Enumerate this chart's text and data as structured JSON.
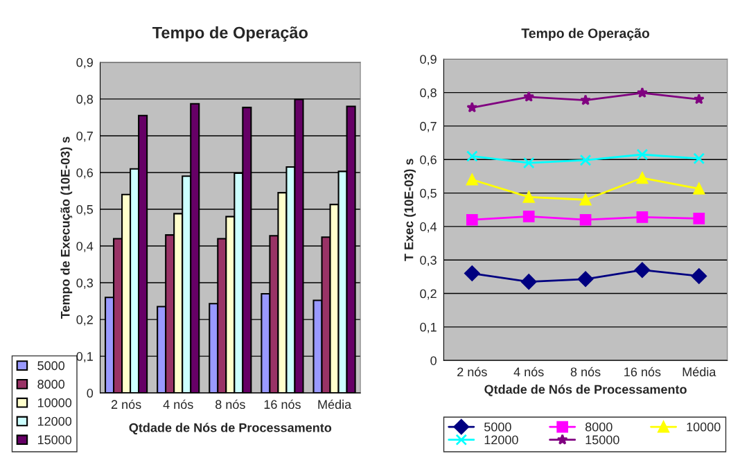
{
  "chart_data": [
    {
      "type": "bar",
      "title": "Tempo de Operação",
      "xlabel": "Qtdade de Nós de Processamento",
      "ylabel": "Tempo de Execução (10E-03) s",
      "categories": [
        "2 nós",
        "4 nós",
        "8 nós",
        "16 nós",
        "Média"
      ],
      "series": [
        {
          "name": "5000",
          "color": "#9999ff",
          "values": [
            0.26,
            0.235,
            0.243,
            0.27,
            0.252
          ]
        },
        {
          "name": "8000",
          "color": "#993366",
          "values": [
            0.42,
            0.43,
            0.42,
            0.428,
            0.424
          ]
        },
        {
          "name": "10000",
          "color": "#ffffcc",
          "values": [
            0.54,
            0.488,
            0.48,
            0.545,
            0.513
          ]
        },
        {
          "name": "12000",
          "color": "#ccffff",
          "values": [
            0.61,
            0.59,
            0.598,
            0.615,
            0.603
          ]
        },
        {
          "name": "15000",
          "color": "#660066",
          "values": [
            0.755,
            0.787,
            0.777,
            0.799,
            0.78
          ]
        }
      ],
      "ylim": [
        0,
        0.9
      ],
      "yticks": [
        0,
        {
          "value": 0.1,
          "label": "0,1"
        },
        {
          "value": 0.2,
          "label": "0,2"
        },
        {
          "value": 0.3,
          "label": "0,3"
        },
        {
          "value": 0.4,
          "label": "0,4"
        },
        {
          "value": 0.5,
          "label": "0,5"
        },
        {
          "value": 0.6,
          "label": "0,6"
        },
        {
          "value": 0.7,
          "label": "0,7"
        },
        {
          "value": 0.8,
          "label": "0,8"
        },
        {
          "value": 0.9,
          "label": "0,9"
        }
      ],
      "grid": "y",
      "legend": "bottom left"
    },
    {
      "type": "line",
      "title": "Tempo de Operação",
      "xlabel": "Qtdade de Nós de Processamento",
      "ylabel": "T Exec (10E-03) s",
      "categories": [
        "2 nós",
        "4 nós",
        "8 nós",
        "16 nós",
        "Média"
      ],
      "series": [
        {
          "name": "5000",
          "color": "#000080",
          "marker": "diamond",
          "values": [
            0.26,
            0.235,
            0.243,
            0.27,
            0.252
          ]
        },
        {
          "name": "8000",
          "color": "#ff00ff",
          "marker": "square",
          "values": [
            0.42,
            0.43,
            0.42,
            0.428,
            0.424
          ]
        },
        {
          "name": "10000",
          "color": "#ffff00",
          "marker": "triangle",
          "values": [
            0.54,
            0.488,
            0.48,
            0.545,
            0.513
          ]
        },
        {
          "name": "12000",
          "color": "#00ffff",
          "marker": "cross",
          "values": [
            0.61,
            0.59,
            0.598,
            0.615,
            0.603
          ]
        },
        {
          "name": "15000",
          "color": "#800080",
          "marker": "star",
          "values": [
            0.755,
            0.787,
            0.777,
            0.799,
            0.78
          ]
        }
      ],
      "ylim": [
        0,
        0.9
      ],
      "yticks": [
        0,
        {
          "value": 0.1,
          "label": "0,1"
        },
        {
          "value": 0.2,
          "label": "0,2"
        },
        {
          "value": 0.3,
          "label": "0,3"
        },
        {
          "value": 0.4,
          "label": "0,4"
        },
        {
          "value": 0.5,
          "label": "0,5"
        },
        {
          "value": 0.6,
          "label": "0,6"
        },
        {
          "value": 0.7,
          "label": "0,7"
        },
        {
          "value": 0.8,
          "label": "0,8"
        },
        {
          "value": 0.9,
          "label": "0,9"
        }
      ],
      "grid": "y",
      "legend": "bottom",
      "line_style": "solid"
    }
  ]
}
